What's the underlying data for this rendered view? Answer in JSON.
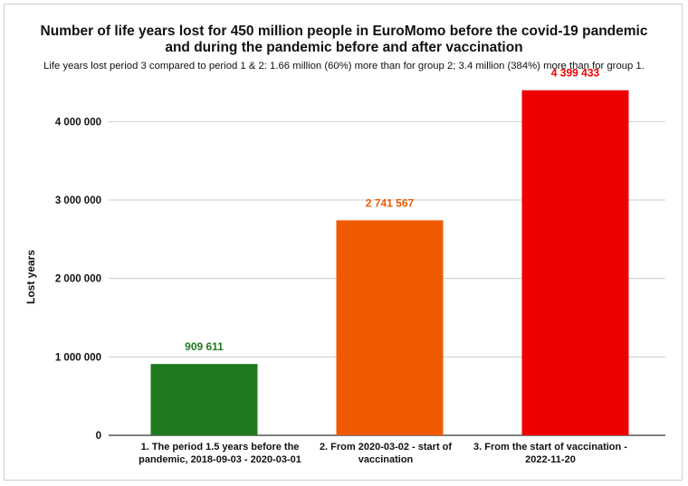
{
  "chart_data": {
    "type": "bar",
    "title_lines": [
      "Number of life years lost for 450 million people in EuroMomo before the covid-19 pandemic",
      "and during the pandemic before and after vaccination"
    ],
    "subtitle": "Life years lost period 3 compared to period 1 & 2: 1.66 million (60%) more than for group 2; 3.4 million (384%) more than for group 1.",
    "xlabel": "",
    "ylabel": "Lost years",
    "categories": [
      [
        "1. The period 1.5 years before the",
        "pandemic, 2018-09-03 - 2020-03-01"
      ],
      [
        "2. From 2020-03-02 - start of",
        "vaccination"
      ],
      [
        "3. From the start of vaccination -",
        "2022-11-20"
      ]
    ],
    "values": [
      909611,
      2741567,
      4399433
    ],
    "data_labels": [
      "909 611",
      "2 741 567",
      "4 399 433"
    ],
    "colors": [
      "#1f7a1f",
      "#f05a00",
      "#ef0000"
    ],
    "label_colors": [
      "#1f7a1f",
      "#f05a00",
      "#ef0000"
    ],
    "ylim": [
      0,
      4500000
    ],
    "yticks": [
      0,
      1000000,
      2000000,
      3000000,
      4000000
    ],
    "ytick_labels": [
      "0",
      "1 000 000",
      "2 000 000",
      "3 000 000",
      "4 000 000"
    ],
    "grid": true,
    "legend": "none"
  }
}
